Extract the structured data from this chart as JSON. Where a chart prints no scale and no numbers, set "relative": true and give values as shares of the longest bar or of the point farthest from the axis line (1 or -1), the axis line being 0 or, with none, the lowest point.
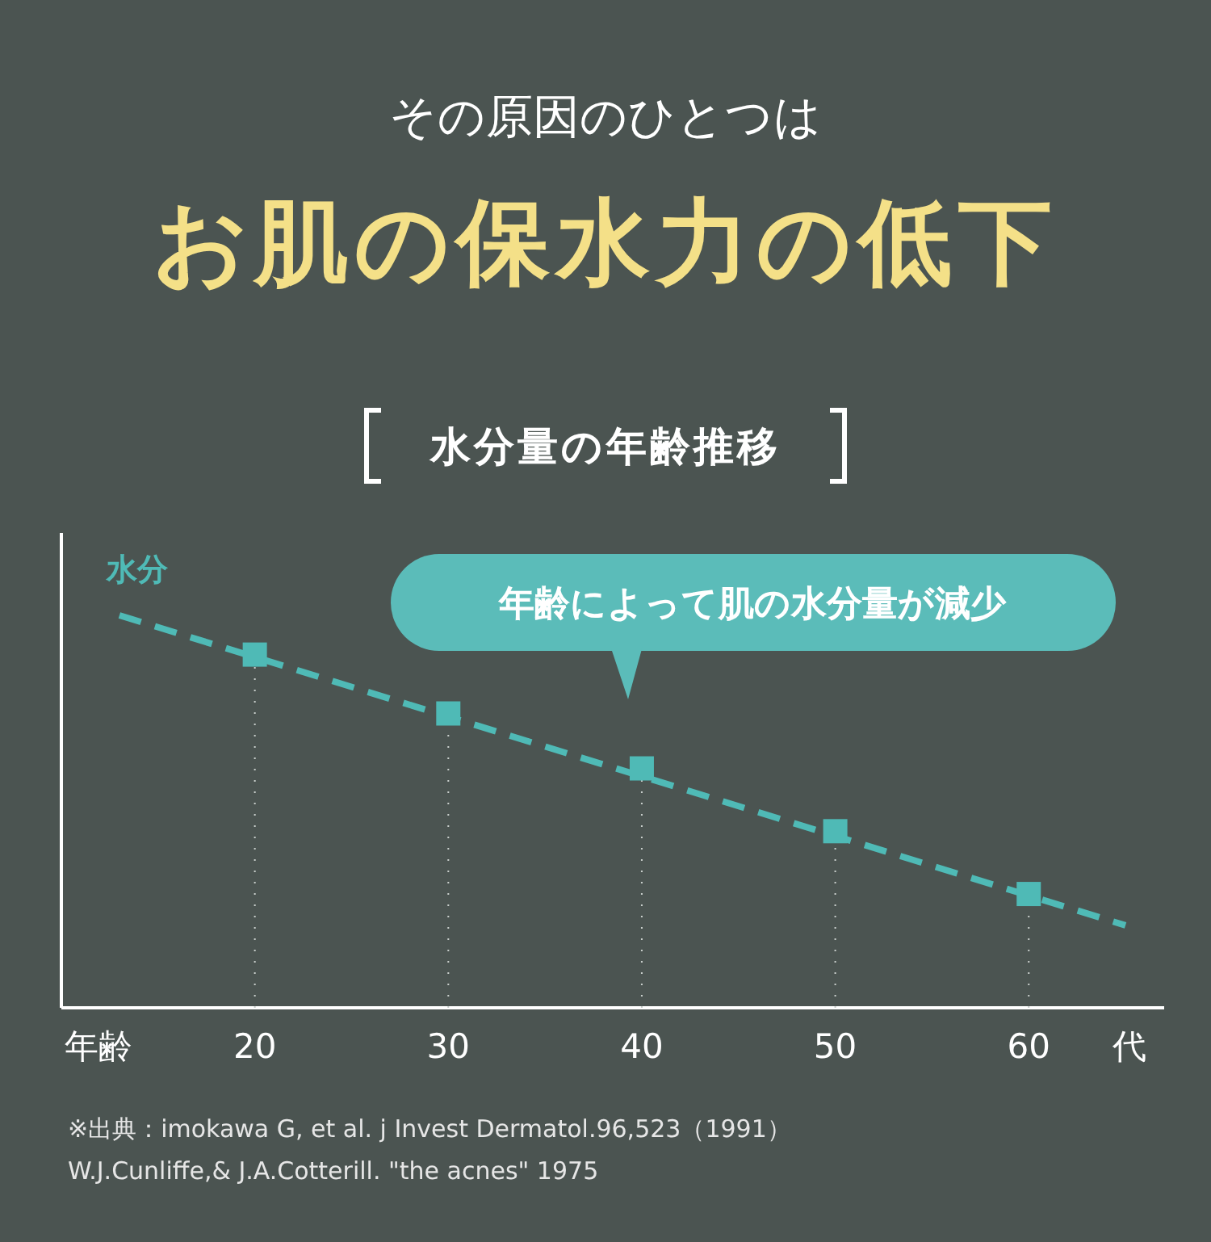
{
  "chart_data": {
    "type": "line",
    "title": "その原因のひとつは",
    "subtitle": "お肌の保水力の低下",
    "xlabel": "年齢",
    "ylabel": "水分",
    "relative": true,
    "annotations": [
      "水分量の年齢推移",
      "年齢によって肌の水分量が減少",
      "代",
      "※出典：imokawa G, et al. j Invest Dermatol.96,523（1991）",
      "W.J.Cunliffe,& J.A.Cotterill. \"the acnes\" 1975"
    ],
    "xlim": [
      10,
      67
    ],
    "xticks": [
      20,
      30,
      40,
      50,
      60
    ],
    "series": [
      {
        "color": "#4fbab6",
        "x": [
          13,
          65
        ],
        "values": [
          1,
          0.21
        ],
        "line_style": "dashed",
        "marker": "none"
      },
      {
        "type": "lollipop",
        "color": "#4fbab6",
        "x": [
          20,
          30,
          40,
          50,
          60
        ],
        "values": [
          0.9,
          0.75,
          0.61,
          0.45,
          0.29
        ],
        "marker": "square"
      }
    ]
  }
}
